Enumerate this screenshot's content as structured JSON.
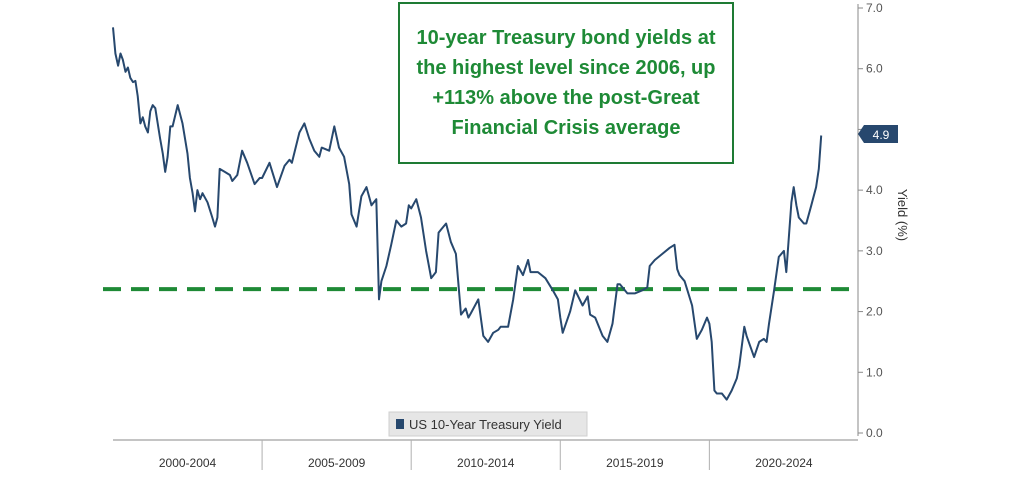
{
  "annotation": "10-year Treasury bond yields at the highest level since 2006, up +113% above the post-Great Financial Crisis average",
  "chart_data": {
    "type": "line",
    "title": "",
    "xlabel": "",
    "ylabel": "Yield (%)",
    "ylim": [
      0,
      7
    ],
    "yticks": [
      "0.0",
      "1.0",
      "2.0",
      "3.0",
      "4.0",
      "5.0",
      "6.0",
      "7.0"
    ],
    "x_range": [
      2000.0,
      2024.75
    ],
    "categories": [
      "2000-2004",
      "2005-2009",
      "2010-2014",
      "2015-2019",
      "2020-2024"
    ],
    "last_value_label": "4.9",
    "reference_line": {
      "y": 2.37,
      "style": "dashed",
      "color": "#1e8a36"
    },
    "legend": {
      "position": "bottom-center",
      "entries": [
        "US 10-Year Treasury Yield"
      ]
    },
    "grid": false,
    "series": [
      {
        "name": "US 10-Year Treasury Yield",
        "color": "#27486e",
        "x": [
          2000.0,
          2000.08,
          2000.17,
          2000.25,
          2000.33,
          2000.42,
          2000.5,
          2000.58,
          2000.67,
          2000.75,
          2000.83,
          2000.92,
          2001.0,
          2001.08,
          2001.17,
          2001.25,
          2001.33,
          2001.42,
          2001.5,
          2001.58,
          2001.67,
          2001.75,
          2001.83,
          2001.92,
          2002.0,
          2002.17,
          2002.33,
          2002.5,
          2002.58,
          2002.67,
          2002.75,
          2002.83,
          2002.92,
          2003.0,
          2003.17,
          2003.33,
          2003.42,
          2003.5,
          2003.58,
          2003.75,
          2003.92,
          2004.0,
          2004.17,
          2004.33,
          2004.5,
          2004.75,
          2004.92,
          2005.0,
          2005.25,
          2005.5,
          2005.75,
          2005.92,
          2006.0,
          2006.25,
          2006.42,
          2006.58,
          2006.75,
          2006.92,
          2007.0,
          2007.25,
          2007.42,
          2007.58,
          2007.75,
          2007.92,
          2008.0,
          2008.17,
          2008.33,
          2008.5,
          2008.67,
          2008.83,
          2008.92,
          2009.0,
          2009.17,
          2009.33,
          2009.5,
          2009.67,
          2009.83,
          2009.92,
          2010.0,
          2010.17,
          2010.33,
          2010.5,
          2010.67,
          2010.83,
          2010.92,
          2011.0,
          2011.17,
          2011.33,
          2011.5,
          2011.67,
          2011.83,
          2011.92,
          2012.0,
          2012.25,
          2012.42,
          2012.58,
          2012.75,
          2012.92,
          2013.0,
          2013.25,
          2013.42,
          2013.58,
          2013.75,
          2013.92,
          2014.0,
          2014.25,
          2014.5,
          2014.75,
          2014.92,
          2015.0,
          2015.08,
          2015.33,
          2015.5,
          2015.75,
          2015.92,
          2016.0,
          2016.17,
          2016.42,
          2016.58,
          2016.75,
          2016.92,
          2017.0,
          2017.25,
          2017.5,
          2017.75,
          2017.92,
          2018.0,
          2018.17,
          2018.42,
          2018.67,
          2018.83,
          2018.92,
          2019.0,
          2019.17,
          2019.42,
          2019.58,
          2019.75,
          2019.92,
          2020.0,
          2020.08,
          2020.17,
          2020.25,
          2020.42,
          2020.58,
          2020.75,
          2020.92,
          2021.0,
          2021.17,
          2021.25,
          2021.5,
          2021.67,
          2021.83,
          2021.92,
          2022.0,
          2022.17,
          2022.33,
          2022.5,
          2022.58,
          2022.75,
          2022.83,
          2022.92,
          2023.0,
          2023.17,
          2023.25,
          2023.42,
          2023.58,
          2023.67,
          2023.75
        ],
        "values": [
          6.68,
          6.25,
          6.05,
          6.25,
          6.15,
          5.95,
          6.02,
          5.85,
          5.78,
          5.8,
          5.55,
          5.1,
          5.2,
          5.05,
          4.95,
          5.3,
          5.4,
          5.35,
          5.1,
          4.85,
          4.6,
          4.3,
          4.55,
          5.05,
          5.05,
          5.4,
          5.1,
          4.6,
          4.2,
          3.95,
          3.65,
          4.0,
          3.85,
          3.95,
          3.8,
          3.55,
          3.4,
          3.55,
          4.35,
          4.3,
          4.25,
          4.15,
          4.25,
          4.65,
          4.45,
          4.1,
          4.2,
          4.2,
          4.45,
          4.05,
          4.4,
          4.5,
          4.45,
          4.95,
          5.1,
          4.85,
          4.65,
          4.55,
          4.7,
          4.65,
          5.05,
          4.7,
          4.55,
          4.1,
          3.6,
          3.4,
          3.9,
          4.05,
          3.75,
          3.85,
          2.2,
          2.5,
          2.75,
          3.1,
          3.5,
          3.4,
          3.45,
          3.75,
          3.7,
          3.85,
          3.55,
          3.0,
          2.55,
          2.65,
          3.3,
          3.35,
          3.45,
          3.15,
          2.95,
          1.95,
          2.05,
          1.9,
          1.97,
          2.2,
          1.6,
          1.5,
          1.65,
          1.7,
          1.75,
          1.75,
          2.2,
          2.75,
          2.6,
          2.85,
          2.65,
          2.65,
          2.55,
          2.35,
          2.2,
          1.9,
          1.65,
          2.0,
          2.35,
          2.1,
          2.25,
          1.95,
          1.9,
          1.6,
          1.5,
          1.8,
          2.45,
          2.45,
          2.3,
          2.3,
          2.35,
          2.4,
          2.75,
          2.85,
          2.95,
          3.05,
          3.1,
          2.7,
          2.6,
          2.5,
          2.1,
          1.55,
          1.7,
          1.9,
          1.8,
          1.5,
          0.7,
          0.65,
          0.65,
          0.55,
          0.7,
          0.9,
          1.1,
          1.75,
          1.6,
          1.25,
          1.5,
          1.55,
          1.5,
          1.8,
          2.35,
          2.9,
          3.0,
          2.65,
          3.8,
          4.05,
          3.75,
          3.55,
          3.45,
          3.45,
          3.75,
          4.05,
          4.35,
          4.9
        ]
      }
    ]
  }
}
